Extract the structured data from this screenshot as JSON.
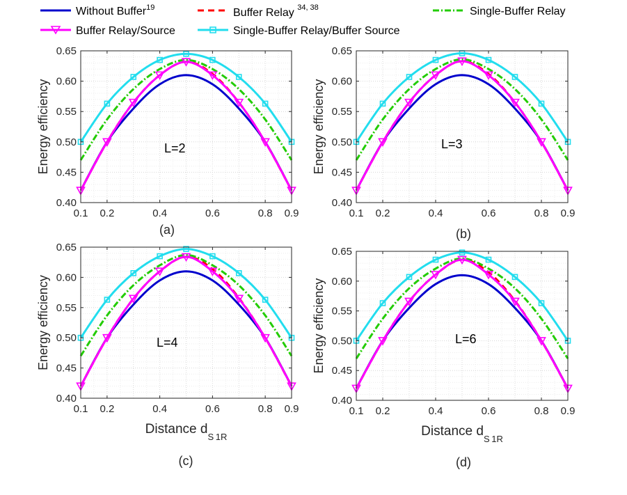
{
  "legend": {
    "entries": [
      {
        "label": "Without Buffer",
        "superscript": "19"
      },
      {
        "label": "Buffer Relay ",
        "superscript": "34, 38"
      },
      {
        "label": "Single-Buffer Relay",
        "superscript": ""
      },
      {
        "label": "Buffer Relay/Source",
        "superscript": ""
      },
      {
        "label": "Single-Buffer Relay/Buffer Source",
        "superscript": ""
      }
    ]
  },
  "colors": {
    "without_buffer": "#0000cc",
    "buffer_relay": "#ff0000",
    "single_buffer_relay": "#22cc00",
    "buffer_relay_source": "#ff00ff",
    "single_buffer_relay_buffer_source": "#22ddee"
  },
  "chart_data": [
    {
      "type": "line",
      "panel": "a",
      "caption": "(a)",
      "annotation": "L=2",
      "ylabel": "Energy efficiency",
      "xlabel": "",
      "xlabel_sub": "",
      "xlim": [
        0.1,
        0.9
      ],
      "ylim": [
        0.4,
        0.65
      ],
      "xticks": [
        "0.1",
        "0.2",
        "0.4",
        "0.6",
        "0.8",
        "0.9"
      ],
      "yticks": [
        "0.40",
        "0.45",
        "0.50",
        "0.55",
        "0.60",
        "0.65"
      ],
      "grid": true,
      "x": [
        0.1,
        0.2,
        0.3,
        0.4,
        0.5,
        0.6,
        0.7,
        0.8,
        0.9
      ],
      "series": [
        {
          "name": "Without Buffer",
          "marker": "none",
          "dash": "solid",
          "values": [
            0.42,
            0.5,
            0.555,
            0.595,
            0.61,
            0.595,
            0.555,
            0.5,
            0.42
          ]
        },
        {
          "name": "Buffer Relay",
          "marker": "none",
          "dash": "dashed",
          "values": [
            0.42,
            0.5,
            0.565,
            0.61,
            0.632,
            0.612,
            0.565,
            0.5,
            0.42
          ]
        },
        {
          "name": "Single-Buffer Relay",
          "marker": "none",
          "dash": "dashdot",
          "values": [
            0.47,
            0.537,
            0.587,
            0.62,
            0.635,
            0.62,
            0.587,
            0.537,
            0.47
          ]
        },
        {
          "name": "Buffer Relay/Source",
          "marker": "triangle-down",
          "dash": "solid",
          "values": [
            0.42,
            0.5,
            0.565,
            0.61,
            0.632,
            0.61,
            0.565,
            0.5,
            0.42
          ]
        },
        {
          "name": "Single-Buffer Relay/Buffer Source",
          "marker": "square",
          "dash": "solid",
          "values": [
            0.5,
            0.563,
            0.607,
            0.635,
            0.645,
            0.635,
            0.607,
            0.563,
            0.5
          ]
        }
      ]
    },
    {
      "type": "line",
      "panel": "b",
      "caption": "(b)",
      "annotation": "L=3",
      "ylabel": "Energy efficiency",
      "xlabel": "",
      "xlabel_sub": "",
      "xlim": [
        0.1,
        0.9
      ],
      "ylim": [
        0.4,
        0.65
      ],
      "xticks": [
        "0.1",
        "0.2",
        "0.4",
        "0.6",
        "0.8",
        "0.9"
      ],
      "yticks": [
        "0.40",
        "0.45",
        "0.50",
        "0.55",
        "0.60",
        "0.65"
      ],
      "grid": true,
      "x": [
        0.1,
        0.2,
        0.3,
        0.4,
        0.5,
        0.6,
        0.7,
        0.8,
        0.9
      ],
      "series": [
        {
          "name": "Without Buffer",
          "marker": "none",
          "dash": "solid",
          "values": [
            0.42,
            0.5,
            0.555,
            0.595,
            0.61,
            0.595,
            0.555,
            0.5,
            0.42
          ]
        },
        {
          "name": "Buffer Relay",
          "marker": "none",
          "dash": "dashed",
          "values": [
            0.42,
            0.5,
            0.565,
            0.61,
            0.633,
            0.612,
            0.565,
            0.5,
            0.42
          ]
        },
        {
          "name": "Single-Buffer Relay",
          "marker": "none",
          "dash": "dashdot",
          "values": [
            0.47,
            0.537,
            0.587,
            0.62,
            0.636,
            0.62,
            0.587,
            0.537,
            0.47
          ]
        },
        {
          "name": "Buffer Relay/Source",
          "marker": "triangle-down",
          "dash": "solid",
          "values": [
            0.42,
            0.5,
            0.565,
            0.61,
            0.633,
            0.61,
            0.565,
            0.5,
            0.42
          ]
        },
        {
          "name": "Single-Buffer Relay/Buffer Source",
          "marker": "square",
          "dash": "solid",
          "values": [
            0.5,
            0.563,
            0.607,
            0.635,
            0.646,
            0.635,
            0.607,
            0.563,
            0.5
          ]
        }
      ]
    },
    {
      "type": "line",
      "panel": "c",
      "caption": "(c)",
      "annotation": "L=4",
      "ylabel": "Energy efficiency",
      "xlabel": "Distance d",
      "xlabel_sub": "S 1R",
      "xlim": [
        0.1,
        0.9
      ],
      "ylim": [
        0.4,
        0.65
      ],
      "xticks": [
        "0.1",
        "0.2",
        "0.4",
        "0.6",
        "0.8",
        "0.9"
      ],
      "yticks": [
        "0.40",
        "0.45",
        "0.50",
        "0.55",
        "0.60",
        "0.65"
      ],
      "grid": true,
      "x": [
        0.1,
        0.2,
        0.3,
        0.4,
        0.5,
        0.6,
        0.7,
        0.8,
        0.9
      ],
      "series": [
        {
          "name": "Without Buffer",
          "marker": "none",
          "dash": "solid",
          "values": [
            0.42,
            0.5,
            0.555,
            0.595,
            0.61,
            0.595,
            0.555,
            0.5,
            0.42
          ]
        },
        {
          "name": "Buffer Relay",
          "marker": "none",
          "dash": "dashed",
          "values": [
            0.42,
            0.5,
            0.565,
            0.61,
            0.634,
            0.614,
            0.566,
            0.5,
            0.42
          ]
        },
        {
          "name": "Single-Buffer Relay",
          "marker": "none",
          "dash": "dashdot",
          "values": [
            0.47,
            0.537,
            0.587,
            0.62,
            0.637,
            0.62,
            0.587,
            0.537,
            0.47
          ]
        },
        {
          "name": "Buffer Relay/Source",
          "marker": "triangle-down",
          "dash": "solid",
          "values": [
            0.42,
            0.5,
            0.565,
            0.61,
            0.634,
            0.61,
            0.565,
            0.5,
            0.42
          ]
        },
        {
          "name": "Single-Buffer Relay/Buffer Source",
          "marker": "square",
          "dash": "solid",
          "values": [
            0.5,
            0.563,
            0.607,
            0.635,
            0.647,
            0.635,
            0.607,
            0.563,
            0.5
          ]
        }
      ]
    },
    {
      "type": "line",
      "panel": "d",
      "caption": "(d)",
      "annotation": "L=6",
      "ylabel": "Energy efficiency",
      "xlabel": "Distance d",
      "xlabel_sub": "S 1R",
      "xlim": [
        0.1,
        0.9
      ],
      "ylim": [
        0.4,
        0.65
      ],
      "xticks": [
        "0.1",
        "0.2",
        "0.4",
        "0.6",
        "0.8",
        "0.9"
      ],
      "yticks": [
        "0.40",
        "0.45",
        "0.50",
        "0.55",
        "0.60",
        "0.65"
      ],
      "grid": true,
      "x": [
        0.1,
        0.2,
        0.3,
        0.4,
        0.5,
        0.6,
        0.7,
        0.8,
        0.9
      ],
      "series": [
        {
          "name": "Without Buffer",
          "marker": "none",
          "dash": "solid",
          "values": [
            0.42,
            0.5,
            0.555,
            0.595,
            0.61,
            0.595,
            0.555,
            0.5,
            0.42
          ]
        },
        {
          "name": "Buffer Relay",
          "marker": "none",
          "dash": "dashed",
          "values": [
            0.42,
            0.5,
            0.566,
            0.611,
            0.636,
            0.615,
            0.567,
            0.5,
            0.42
          ]
        },
        {
          "name": "Single-Buffer Relay",
          "marker": "none",
          "dash": "dashdot",
          "values": [
            0.47,
            0.537,
            0.588,
            0.621,
            0.638,
            0.621,
            0.588,
            0.537,
            0.47
          ]
        },
        {
          "name": "Buffer Relay/Source",
          "marker": "triangle-down",
          "dash": "solid",
          "values": [
            0.42,
            0.5,
            0.566,
            0.611,
            0.636,
            0.611,
            0.566,
            0.5,
            0.42
          ]
        },
        {
          "name": "Single-Buffer Relay/Buffer Source",
          "marker": "square",
          "dash": "solid",
          "values": [
            0.5,
            0.563,
            0.607,
            0.636,
            0.648,
            0.636,
            0.607,
            0.563,
            0.5
          ]
        }
      ]
    }
  ]
}
